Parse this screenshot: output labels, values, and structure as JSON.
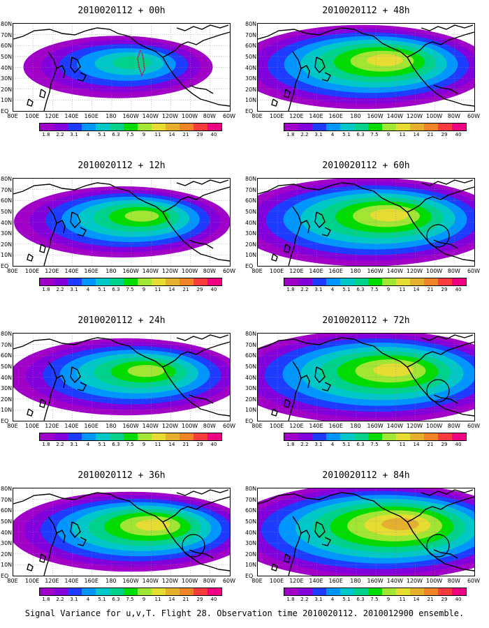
{
  "figure": {
    "footer": "Signal Variance for u,v,T. Flight 28. Observation time 2010020112. 2010012900 ensemble."
  },
  "colorbar": {
    "labels": [
      "1.8",
      "2.2",
      "3.1",
      "4",
      "5.1",
      "6.3",
      "7.5",
      "9",
      "11",
      "14",
      "21",
      "29",
      "40"
    ],
    "colors": [
      "#a000c8",
      "#8200dc",
      "#1e3cff",
      "#0096ff",
      "#00c8c8",
      "#00d28c",
      "#00dc00",
      "#a0e632",
      "#e6dc32",
      "#e6af2d",
      "#f08228",
      "#fa3c3c",
      "#f00082"
    ]
  },
  "map": {
    "lat_labels": [
      "80N",
      "70N",
      "60N",
      "50N",
      "40N",
      "30N",
      "20N",
      "10N",
      "EQ"
    ],
    "lon_labels": [
      "80E",
      "100E",
      "120E",
      "140E",
      "160E",
      "180",
      "160W",
      "140W",
      "120W",
      "100W",
      "80W",
      "60W"
    ]
  },
  "chart_data": [
    {
      "type": "heatmap",
      "title": "2010020112 + 00h",
      "coverage": 0.35,
      "peak_level": 5,
      "circle": false,
      "track": true
    },
    {
      "type": "heatmap",
      "title": "2010020112 + 12h",
      "coverage": 0.5,
      "peak_level": 7,
      "circle": false,
      "track": false
    },
    {
      "type": "heatmap",
      "title": "2010020112 + 24h",
      "coverage": 0.6,
      "peak_level": 7,
      "circle": false,
      "track": false
    },
    {
      "type": "heatmap",
      "title": "2010020112 + 36h",
      "coverage": 0.65,
      "peak_level": 8,
      "circle": true,
      "track": false
    },
    {
      "type": "heatmap",
      "title": "2010020112 + 48h",
      "coverage": 0.72,
      "peak_level": 8,
      "circle": false,
      "track": false
    },
    {
      "type": "heatmap",
      "title": "2010020112 + 60h",
      "coverage": 0.8,
      "peak_level": 8,
      "circle": true,
      "track": false
    },
    {
      "type": "heatmap",
      "title": "2010020112 + 72h",
      "coverage": 0.88,
      "peak_level": 8,
      "circle": true,
      "track": false
    },
    {
      "type": "heatmap",
      "title": "2010020112 + 84h",
      "coverage": 0.94,
      "peak_level": 9,
      "circle": true,
      "track": false
    }
  ]
}
